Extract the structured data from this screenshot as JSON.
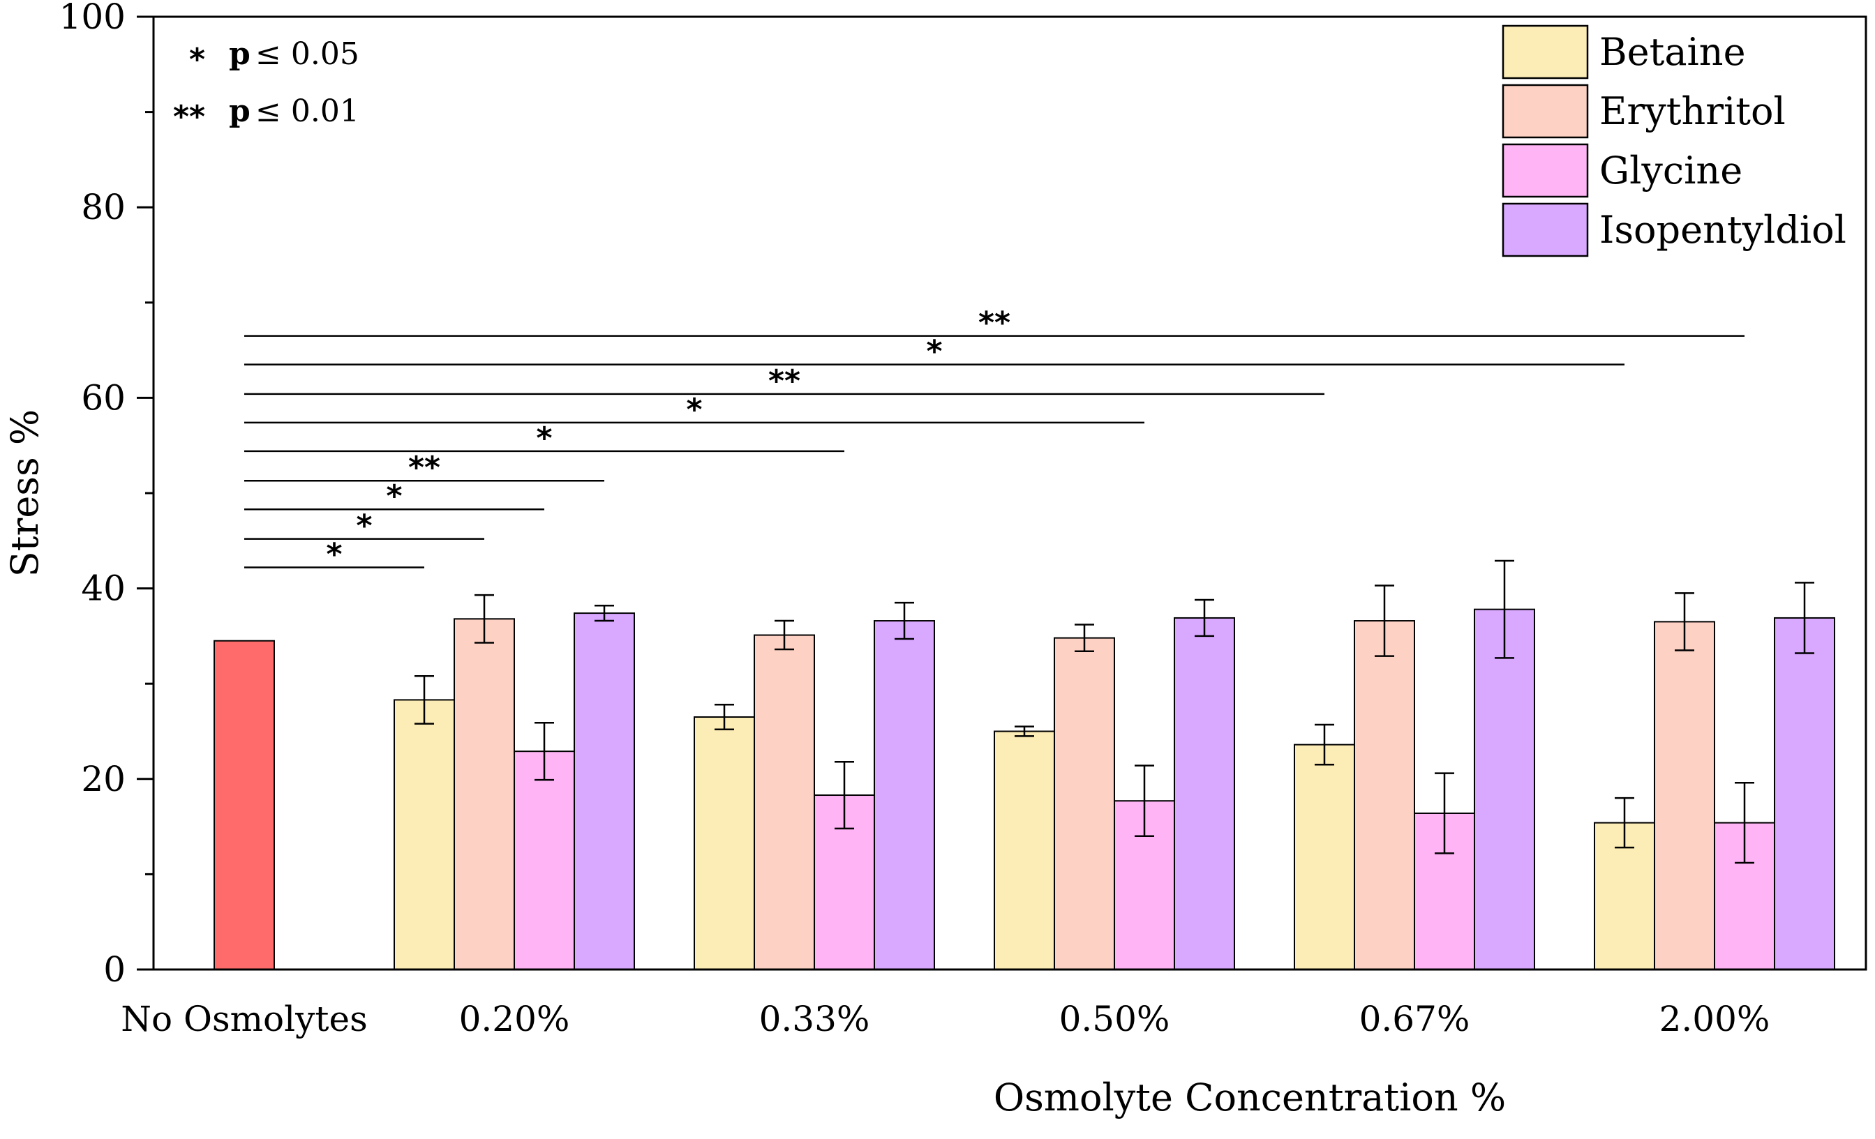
{
  "chart_data": {
    "type": "bar",
    "xlabel": "Osmolyte Concentration %",
    "ylabel": "Stress %",
    "ylim": [
      0,
      100
    ],
    "yticks": [
      0,
      20,
      40,
      60,
      80,
      100
    ],
    "grid": false,
    "legend_position": "top-right",
    "categories": [
      "No Osmolytes",
      "0.20%",
      "0.33%",
      "0.50%",
      "0.67%",
      "2.00%"
    ],
    "control": {
      "category": "No Osmolytes",
      "value": 34.5,
      "color": "#ff6b6b"
    },
    "series": [
      {
        "name": "Betaine",
        "color": "#fcecb5",
        "values": [
          null,
          28.3,
          26.5,
          25.0,
          23.6,
          15.4
        ],
        "errors": [
          null,
          2.5,
          1.3,
          0.5,
          2.1,
          2.6
        ]
      },
      {
        "name": "Erythritol",
        "color": "#fdd2c4",
        "values": [
          null,
          36.8,
          35.1,
          34.8,
          36.6,
          36.5
        ],
        "errors": [
          null,
          2.5,
          1.5,
          1.4,
          3.7,
          3.0
        ]
      },
      {
        "name": "Glycine",
        "color": "#ffb5f5",
        "values": [
          null,
          22.9,
          18.3,
          17.7,
          16.4,
          15.4
        ],
        "errors": [
          null,
          3.0,
          3.5,
          3.7,
          4.2,
          4.2
        ]
      },
      {
        "name": "Isopentyldiol",
        "color": "#d9a8ff",
        "values": [
          null,
          37.4,
          36.6,
          36.9,
          37.8,
          36.9
        ],
        "errors": [
          null,
          0.8,
          1.9,
          1.9,
          5.1,
          3.7
        ]
      }
    ],
    "significance_note": [
      {
        "stars": "*",
        "label": "p",
        "text": "≤ 0.05"
      },
      {
        "stars": "**",
        "label": "p",
        "text": "≤ 0.01"
      }
    ],
    "significance_brackets": [
      {
        "stars": "*",
        "y": 42.2,
        "to_category": 1,
        "to_series": 0
      },
      {
        "stars": "*",
        "y": 45.2,
        "to_category": 1,
        "to_series": 1
      },
      {
        "stars": "*",
        "y": 48.3,
        "to_category": 1,
        "to_series": 2
      },
      {
        "stars": "**",
        "y": 51.3,
        "to_category": 1,
        "to_series": 3
      },
      {
        "stars": "*",
        "y": 54.4,
        "to_category": 2,
        "to_series": 2
      },
      {
        "stars": "*",
        "y": 57.4,
        "to_category": 3,
        "to_series": 2
      },
      {
        "stars": "**",
        "y": 60.4,
        "to_category": 4,
        "to_series": 0
      },
      {
        "stars": "*",
        "y": 63.5,
        "to_category": 5,
        "to_series": 0
      },
      {
        "stars": "**",
        "y": 66.5,
        "to_category": 5,
        "to_series": 2
      }
    ]
  }
}
